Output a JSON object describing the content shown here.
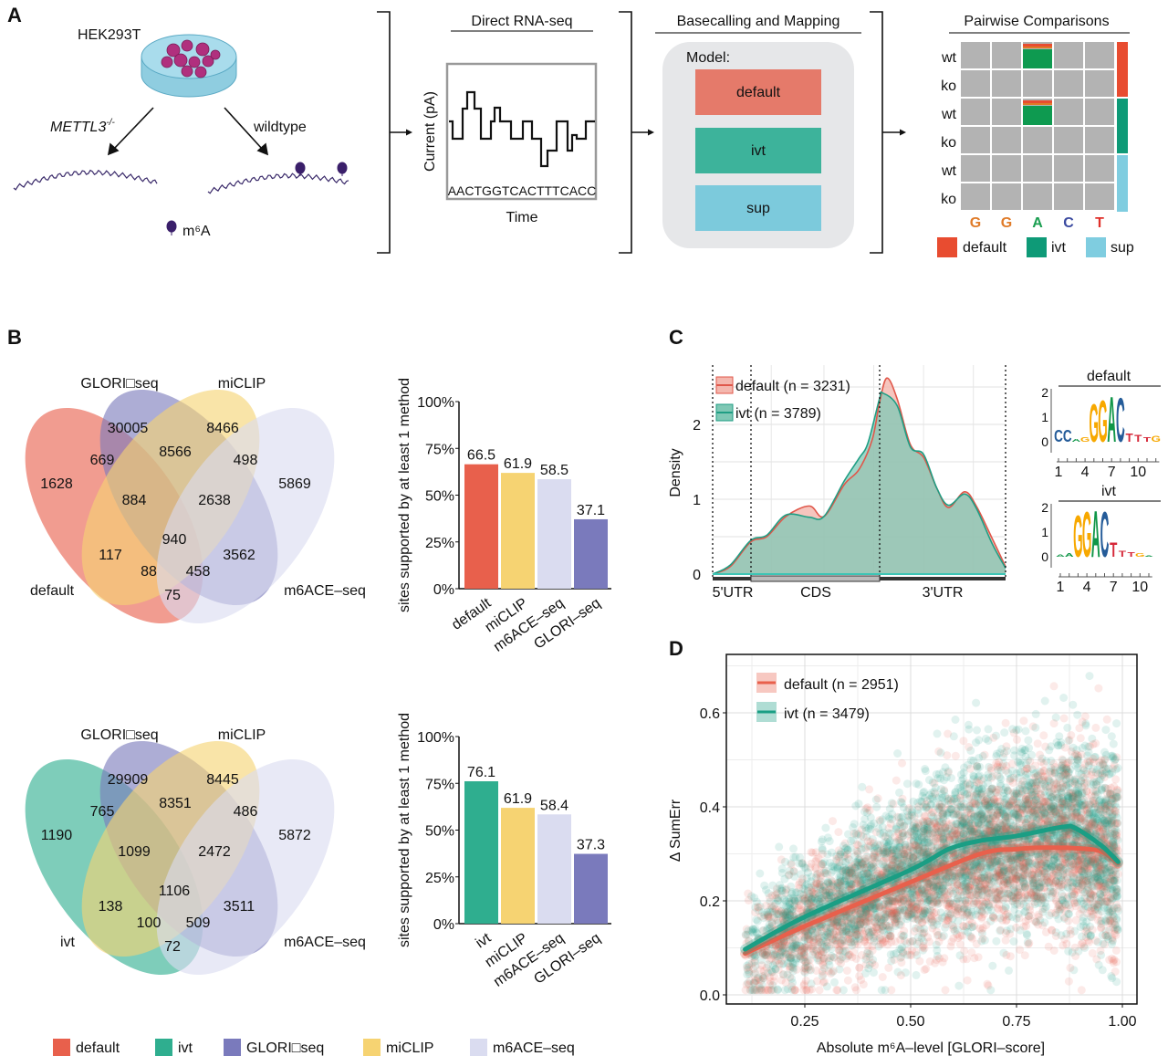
{
  "colors": {
    "default": "#e8604c",
    "ivt": "#2fae8f",
    "sup": "#7ccadc",
    "glori": "#7a7abc",
    "miclip": "#f6d372",
    "m6ace": "#dadcf0",
    "wt_ko_default": "#e84c30",
    "wt_ko_ivt": "#0e9a77",
    "wt_ko_sup": "#7fcde0"
  },
  "panelA": {
    "label": "A",
    "cell_line": "HEK293T",
    "knockout": "METTL3",
    "knockout_sup": "-/-",
    "wildtype": "wildtype",
    "m6a_legend": "m⁶A",
    "rnaseq": {
      "title": "Direct RNA-seq",
      "ylabel": "Current (pA)",
      "sequence": "AACTGGTCACTTTCACC",
      "xlabel": "Time"
    },
    "basecalling": {
      "title": "Basecalling and Mapping",
      "model_label": "Model:",
      "models": [
        "default",
        "ivt",
        "sup"
      ]
    },
    "pairwise": {
      "title": "Pairwise Comparisons",
      "rows": [
        "wt",
        "ko",
        "wt",
        "ko",
        "wt",
        "ko"
      ],
      "bases": [
        "G",
        "G",
        "A",
        "C",
        "T"
      ],
      "base_colors": [
        "#e07b28",
        "#e07b28",
        "#1a9e50",
        "#3b4aa0",
        "#e0302a"
      ],
      "legend": [
        "default",
        "ivt",
        "sup"
      ]
    }
  },
  "panelB": {
    "label": "B",
    "venns": [
      {
        "set_labels": [
          "default",
          "GLORI□seq",
          "miCLIP",
          "m6ACE–seq"
        ],
        "regions": [
          {
            "sets": "GLORI",
            "count": "30005"
          },
          {
            "sets": "miCLIP",
            "count": "8466"
          },
          {
            "sets": "default+GLORI",
            "count": "669"
          },
          {
            "sets": "GLORI+miCLIP",
            "count": "8566"
          },
          {
            "sets": "miCLIP+m6ACE",
            "count": "498"
          },
          {
            "sets": "default",
            "count": "1628"
          },
          {
            "sets": "m6ACE",
            "count": "5869"
          },
          {
            "sets": "default+GLORI+miCLIP",
            "count": "884"
          },
          {
            "sets": "GLORI+miCLIP+m6ACE",
            "count": "2638"
          },
          {
            "sets": "all",
            "count": "940"
          },
          {
            "sets": "default+miCLIP",
            "count": "117"
          },
          {
            "sets": "GLORI+m6ACE",
            "count": "3562"
          },
          {
            "sets": "default+miCLIP+m6ACE",
            "count": "88"
          },
          {
            "sets": "default+GLORI+m6ACE",
            "count": "458"
          },
          {
            "sets": "default+m6ACE",
            "count": "75"
          }
        ]
      },
      {
        "set_labels": [
          "ivt",
          "GLORI□seq",
          "miCLIP",
          "m6ACE–seq"
        ],
        "regions": [
          {
            "sets": "GLORI",
            "count": "29909"
          },
          {
            "sets": "miCLIP",
            "count": "8445"
          },
          {
            "sets": "ivt+GLORI",
            "count": "765"
          },
          {
            "sets": "GLORI+miCLIP",
            "count": "8351"
          },
          {
            "sets": "miCLIP+m6ACE",
            "count": "486"
          },
          {
            "sets": "ivt",
            "count": "1190"
          },
          {
            "sets": "m6ACE",
            "count": "5872"
          },
          {
            "sets": "ivt+GLORI+miCLIP",
            "count": "1099"
          },
          {
            "sets": "GLORI+miCLIP+m6ACE",
            "count": "2472"
          },
          {
            "sets": "all",
            "count": "1106"
          },
          {
            "sets": "ivt+miCLIP",
            "count": "138"
          },
          {
            "sets": "GLORI+m6ACE",
            "count": "3511"
          },
          {
            "sets": "ivt+miCLIP+m6ACE",
            "count": "100"
          },
          {
            "sets": "ivt+GLORI+m6ACE",
            "count": "509"
          },
          {
            "sets": "ivt+m6ACE",
            "count": "72"
          }
        ]
      }
    ],
    "legend": [
      "default",
      "ivt",
      "GLORI□seq",
      "miCLIP",
      "m6ACE–seq"
    ]
  },
  "panelC": {
    "label": "C",
    "logo_titles": [
      "default",
      "ivt"
    ]
  },
  "panelD": {
    "label": "D"
  },
  "chart_data": [
    {
      "type": "bar",
      "ylabel": "sites supported by at least 1 method",
      "categories": [
        "default",
        "miCLIP",
        "m6ACE–seq",
        "GLORI–seq"
      ],
      "values": [
        66.5,
        61.9,
        58.5,
        37.1
      ],
      "value_labels": [
        "66.5",
        "61.9",
        "58.5",
        "37.1"
      ],
      "ylim": [
        0,
        100
      ],
      "yticks": [
        "0%",
        "25%",
        "50%",
        "75%",
        "100%"
      ],
      "bar_colors": [
        "#e8604c",
        "#f6d372",
        "#dadcf0",
        "#7a7abc"
      ]
    },
    {
      "type": "bar",
      "ylabel": "sites supported by at least 1 method",
      "categories": [
        "ivt",
        "miCLIP",
        "m6ACE–seq",
        "GLORI–seq"
      ],
      "values": [
        76.1,
        61.9,
        58.4,
        37.3
      ],
      "value_labels": [
        "76.1",
        "61.9",
        "58.4",
        "37.3"
      ],
      "ylim": [
        0,
        100
      ],
      "yticks": [
        "0%",
        "25%",
        "50%",
        "75%",
        "100%"
      ],
      "bar_colors": [
        "#2fae8f",
        "#f6d372",
        "#dadcf0",
        "#7a7abc"
      ]
    },
    {
      "type": "area",
      "ylabel": "Density",
      "yticks": [
        "0",
        "1",
        "2"
      ],
      "regions": [
        "5'UTR",
        "CDS",
        "3'UTR"
      ],
      "x_unit": "relative metagene position (0-1)",
      "series": [
        {
          "name": "default (n = 3231)",
          "color": "#e0574a",
          "fill": "#f4b7ae",
          "points": [
            [
              0,
              0
            ],
            [
              0.06,
              0.1
            ],
            [
              0.13,
              0.43
            ],
            [
              0.185,
              0.5
            ],
            [
              0.25,
              0.77
            ],
            [
              0.33,
              0.91
            ],
            [
              0.38,
              0.77
            ],
            [
              0.45,
              1.2
            ],
            [
              0.5,
              1.4
            ],
            [
              0.545,
              1.8
            ],
            [
              0.57,
              2.3
            ],
            [
              0.595,
              2.62
            ],
            [
              0.63,
              2.34
            ],
            [
              0.675,
              1.73
            ],
            [
              0.72,
              1.56
            ],
            [
              0.765,
              1.15
            ],
            [
              0.805,
              0.89
            ],
            [
              0.86,
              1.1
            ],
            [
              0.9,
              0.91
            ],
            [
              0.955,
              0.47
            ],
            [
              1,
              0.1
            ]
          ]
        },
        {
          "name": "ivt (n = 3789)",
          "color": "#1f9e84",
          "fill": "#7fc8b5",
          "points": [
            [
              0,
              0
            ],
            [
              0.06,
              0.12
            ],
            [
              0.13,
              0.45
            ],
            [
              0.185,
              0.52
            ],
            [
              0.25,
              0.79
            ],
            [
              0.33,
              0.76
            ],
            [
              0.38,
              0.77
            ],
            [
              0.45,
              1.25
            ],
            [
              0.5,
              1.55
            ],
            [
              0.53,
              1.75
            ],
            [
              0.57,
              2.35
            ],
            [
              0.58,
              2.42
            ],
            [
              0.63,
              2.25
            ],
            [
              0.675,
              1.7
            ],
            [
              0.72,
              1.6
            ],
            [
              0.765,
              1.15
            ],
            [
              0.805,
              0.92
            ],
            [
              0.86,
              1.07
            ],
            [
              0.9,
              0.88
            ],
            [
              0.955,
              0.4
            ],
            [
              1,
              0.08
            ]
          ]
        }
      ]
    },
    {
      "type": "sequence-logo",
      "title": "default",
      "yticks": [
        "0",
        "1",
        "2"
      ],
      "xticks": [
        "1",
        "4",
        "7",
        "10"
      ],
      "columns": [
        [
          "C",
          0.5
        ],
        [
          "C",
          0.5
        ],
        [
          "A",
          0.12
        ],
        [
          "G",
          0.2
        ],
        [
          "G",
          1.6
        ],
        [
          "G",
          1.75
        ],
        [
          "A",
          1.9
        ],
        [
          "C",
          1.85
        ],
        [
          "T",
          0.35
        ],
        [
          "T",
          0.3
        ],
        [
          "T",
          0.2
        ],
        [
          "G",
          0.25
        ]
      ]
    },
    {
      "type": "sequence-logo",
      "title": "ivt",
      "yticks": [
        "0",
        "1",
        "2"
      ],
      "xticks": [
        "1",
        "4",
        "7",
        "10"
      ],
      "columns": [
        [
          "A",
          0.1
        ],
        [
          "A",
          0.15
        ],
        [
          "G",
          1.75
        ],
        [
          "G",
          1.9
        ],
        [
          "A",
          1.95
        ],
        [
          "C",
          1.9
        ],
        [
          "T",
          0.6
        ],
        [
          "T",
          0.25
        ],
        [
          "T",
          0.2
        ],
        [
          "G",
          0.15
        ],
        [
          "A",
          0.05
        ]
      ]
    },
    {
      "type": "scatter",
      "xlabel": "Absolute m⁶A–level [GLORI–score]",
      "ylabel": "Δ SumErr",
      "xlim": [
        0.067,
        1.033
      ],
      "ylim": [
        -0.03,
        0.72
      ],
      "xticks": [
        "0.25",
        "0.50",
        "0.75",
        "1.00"
      ],
      "yticks": [
        "0.0",
        "0.2",
        "0.4",
        "0.6"
      ],
      "grid": true,
      "legend_position": "top-left",
      "series": [
        {
          "name": "default (n = 2951)",
          "n": 2951,
          "color": "#e8604c",
          "trend": [
            [
              0.109,
              0.088
            ],
            [
              0.25,
              0.146
            ],
            [
              0.5,
              0.24
            ],
            [
              0.665,
              0.3
            ],
            [
              0.75,
              0.31
            ],
            [
              0.81,
              0.313
            ],
            [
              0.89,
              0.312
            ],
            [
              0.95,
              0.305
            ],
            [
              0.99,
              0.28
            ]
          ]
        },
        {
          "name": "ivt (n = 3479)",
          "n": 3479,
          "color": "#1a9e84",
          "trend": [
            [
              0.109,
              0.097
            ],
            [
              0.25,
              0.166
            ],
            [
              0.5,
              0.266
            ],
            [
              0.59,
              0.31
            ],
            [
              0.665,
              0.328
            ],
            [
              0.75,
              0.338
            ],
            [
              0.858,
              0.357
            ],
            [
              0.89,
              0.354
            ],
            [
              0.95,
              0.318
            ],
            [
              0.99,
              0.283
            ]
          ]
        }
      ]
    }
  ]
}
